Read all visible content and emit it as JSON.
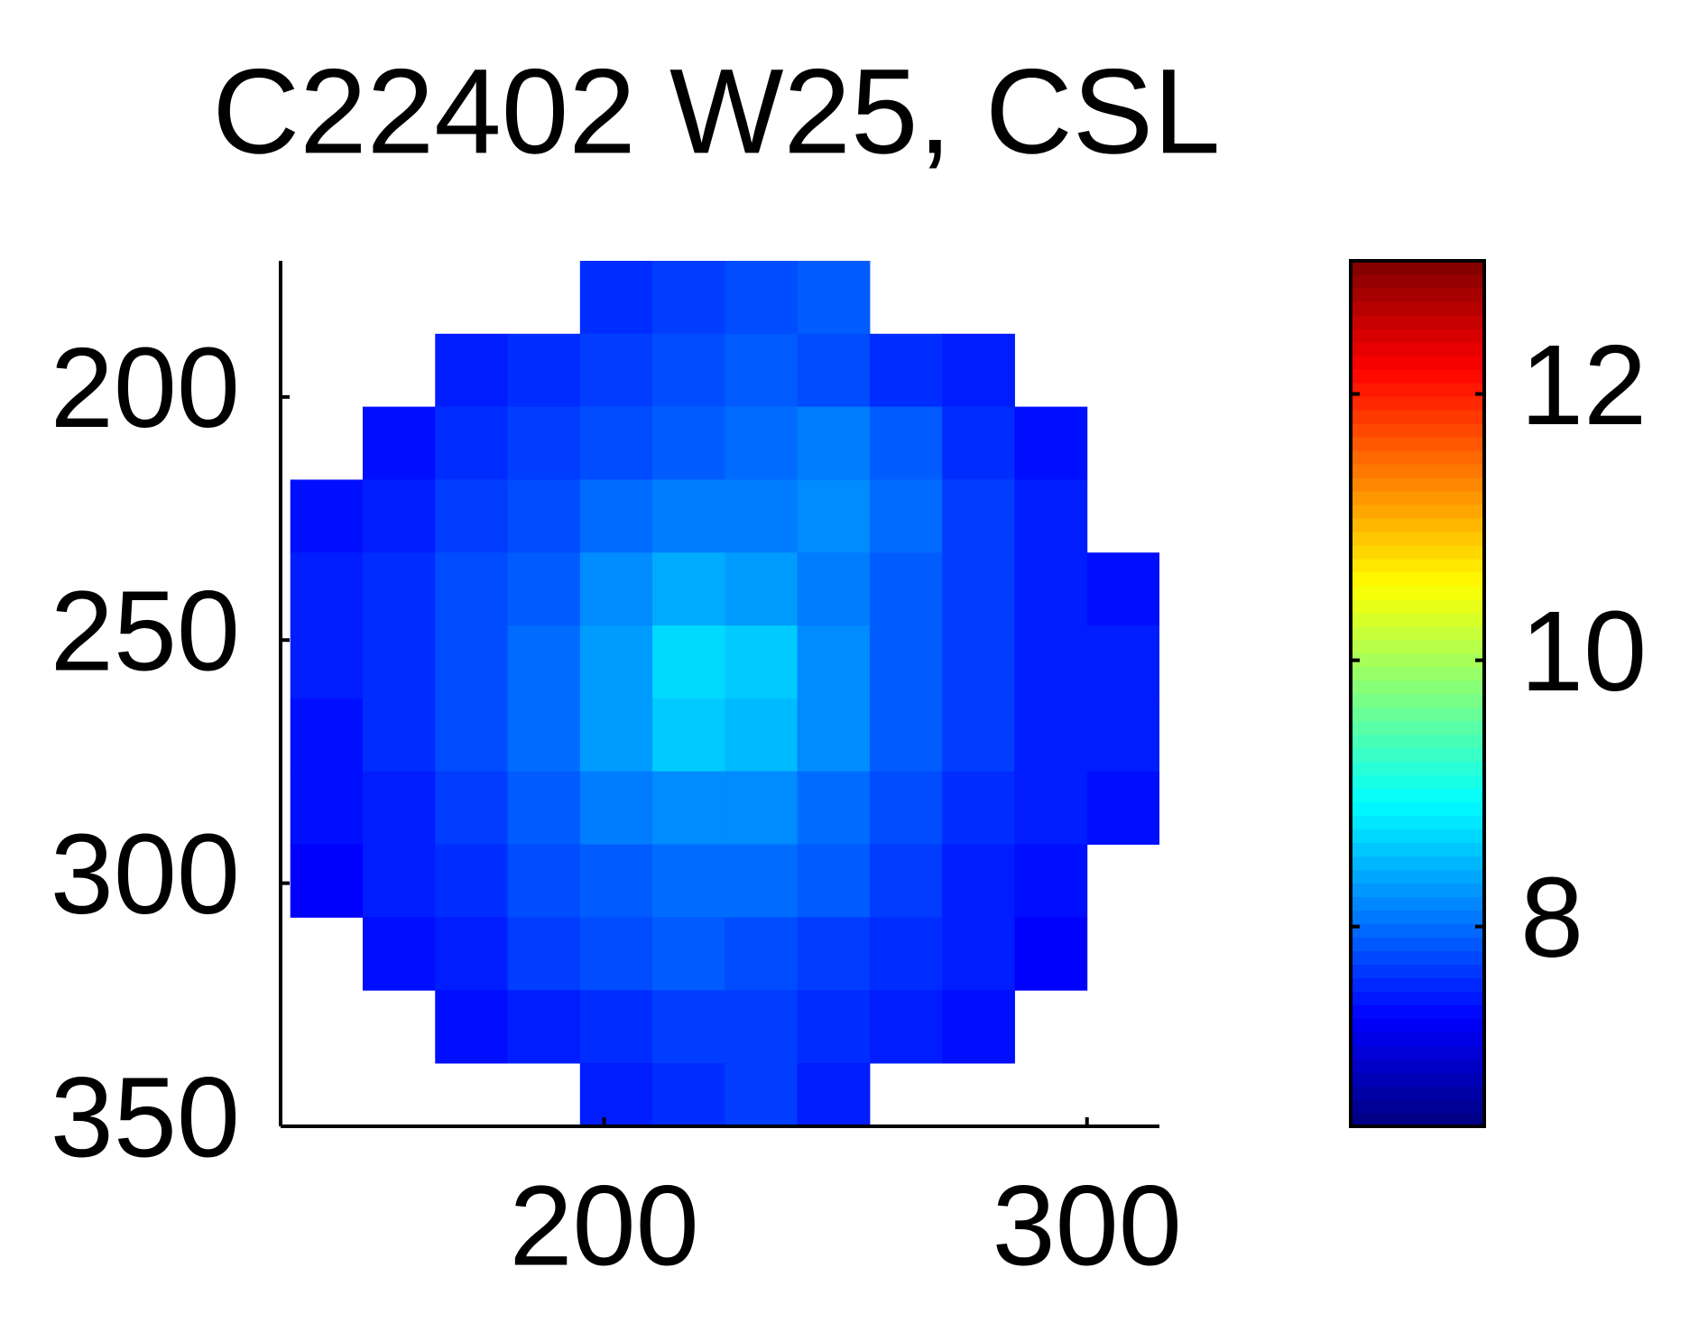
{
  "chart_data": {
    "type": "heatmap",
    "title": "C22402 W25, CSL",
    "colormap": "jet",
    "y_reversed": true,
    "x": [
      142.5,
      157.5,
      172.5,
      187.5,
      202.5,
      217.5,
      232.5,
      247.5,
      262.5,
      277.5,
      292.5,
      307.5
    ],
    "y": [
      179.5,
      194.5,
      209.5,
      224.5,
      239.5,
      254.5,
      269.5,
      284.5,
      299.5,
      314.5,
      329.5,
      344.5
    ],
    "values": [
      [
        null,
        null,
        null,
        null,
        7.6,
        7.7,
        7.8,
        7.9,
        null,
        null,
        null,
        null
      ],
      [
        null,
        null,
        7.5,
        7.6,
        7.7,
        7.8,
        7.9,
        7.8,
        7.6,
        7.5,
        null,
        null
      ],
      [
        null,
        7.4,
        7.6,
        7.7,
        7.8,
        7.9,
        8.0,
        8.1,
        7.9,
        7.6,
        7.4,
        null
      ],
      [
        7.4,
        7.5,
        7.7,
        7.8,
        8.0,
        8.1,
        8.1,
        8.2,
        8.0,
        7.7,
        7.5,
        null
      ],
      [
        7.5,
        7.6,
        7.8,
        7.9,
        8.2,
        8.4,
        8.3,
        8.1,
        7.9,
        7.7,
        7.5,
        7.4
      ],
      [
        7.5,
        7.6,
        7.8,
        8.0,
        8.3,
        8.7,
        8.6,
        8.2,
        7.9,
        7.7,
        7.5,
        7.5
      ],
      [
        7.4,
        7.6,
        7.8,
        8.0,
        8.3,
        8.6,
        8.5,
        8.2,
        7.9,
        7.7,
        7.5,
        7.5
      ],
      [
        7.4,
        7.5,
        7.7,
        7.9,
        8.1,
        8.2,
        8.2,
        8.0,
        7.8,
        7.6,
        7.5,
        7.4
      ],
      [
        7.3,
        7.5,
        7.6,
        7.8,
        7.9,
        8.0,
        8.0,
        7.9,
        7.7,
        7.5,
        7.4,
        null
      ],
      [
        null,
        7.4,
        7.5,
        7.7,
        7.8,
        7.9,
        7.8,
        7.7,
        7.6,
        7.5,
        7.3,
        null
      ],
      [
        null,
        null,
        7.4,
        7.5,
        7.6,
        7.7,
        7.7,
        7.6,
        7.5,
        7.4,
        null,
        null
      ],
      [
        null,
        null,
        null,
        null,
        7.5,
        7.6,
        7.7,
        7.5,
        null,
        null,
        null,
        null
      ]
    ],
    "xlim": [
      133,
      315
    ],
    "xticks": [
      200,
      300
    ],
    "ylim": [
      172,
      350
    ],
    "yticks": [
      200,
      250,
      300,
      350
    ],
    "colorbar": {
      "lim": [
        6.5,
        13
      ],
      "ticks": [
        8,
        10,
        12
      ]
    }
  }
}
